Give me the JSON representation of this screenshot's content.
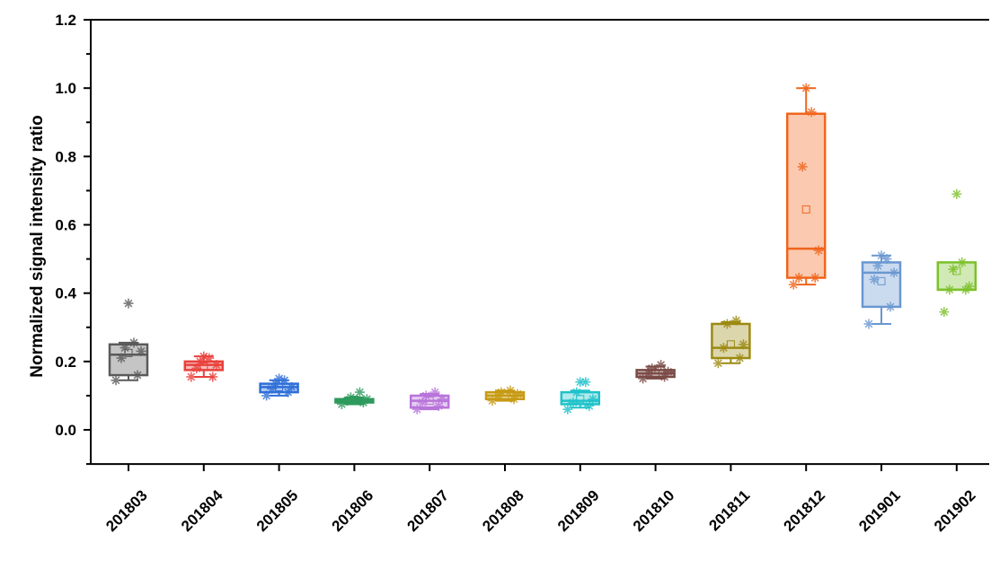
{
  "chart_data": {
    "type": "box",
    "title": "",
    "xlabel": "",
    "ylabel": "Normalized signal intensity ratio",
    "ylim": [
      -0.1,
      1.2
    ],
    "yticks": [
      "0.0",
      "0.2",
      "0.4",
      "0.6",
      "0.8",
      "1.0",
      "1.2"
    ],
    "grid": false,
    "legend": "none",
    "categories": [
      "201803",
      "201804",
      "201805",
      "201806",
      "201807",
      "201808",
      "201809",
      "201810",
      "201811",
      "201812",
      "201901",
      "201902"
    ],
    "series": [
      {
        "category": "201803",
        "color": "#5a5a5a",
        "whisker_low": 0.145,
        "q1": 0.16,
        "median": 0.22,
        "q3": 0.25,
        "whisker_high": 0.255,
        "mean": 0.225,
        "points": [
          0.145,
          0.16,
          0.21,
          0.23,
          0.24,
          0.255,
          0.37
        ]
      },
      {
        "category": "201804",
        "color": "#e8413c",
        "whisker_low": 0.155,
        "q1": 0.175,
        "median": 0.19,
        "q3": 0.2,
        "whisker_high": 0.215,
        "mean": 0.185,
        "points": [
          0.155,
          0.155,
          0.18,
          0.19,
          0.2,
          0.21,
          0.215
        ]
      },
      {
        "category": "201805",
        "color": "#2f6fd8",
        "whisker_low": 0.1,
        "q1": 0.11,
        "median": 0.125,
        "q3": 0.135,
        "whisker_high": 0.145,
        "mean": 0.125,
        "points": [
          0.1,
          0.11,
          0.12,
          0.125,
          0.135,
          0.145,
          0.15
        ]
      },
      {
        "category": "201806",
        "color": "#2e9a5c",
        "whisker_low": 0.075,
        "q1": 0.08,
        "median": 0.085,
        "q3": 0.09,
        "whisker_high": 0.095,
        "mean": 0.088,
        "points": [
          0.075,
          0.08,
          0.085,
          0.09,
          0.095,
          0.11
        ]
      },
      {
        "category": "201807",
        "color": "#b874d9",
        "whisker_low": 0.06,
        "q1": 0.065,
        "median": 0.085,
        "q3": 0.1,
        "whisker_high": 0.105,
        "mean": 0.085,
        "points": [
          0.06,
          0.07,
          0.08,
          0.09,
          0.1,
          0.11
        ]
      },
      {
        "category": "201808",
        "color": "#c79a14",
        "whisker_low": 0.085,
        "q1": 0.09,
        "median": 0.1,
        "q3": 0.11,
        "whisker_high": 0.115,
        "mean": 0.1,
        "points": [
          0.085,
          0.09,
          0.1,
          0.105,
          0.11,
          0.115
        ]
      },
      {
        "category": "201809",
        "color": "#1fc2c9",
        "whisker_low": 0.065,
        "q1": 0.075,
        "median": 0.085,
        "q3": 0.11,
        "whisker_high": 0.115,
        "mean": 0.09,
        "points": [
          0.06,
          0.07,
          0.08,
          0.09,
          0.11,
          0.14,
          0.14
        ]
      },
      {
        "category": "201810",
        "color": "#7a4a46",
        "whisker_low": 0.15,
        "q1": 0.155,
        "median": 0.165,
        "q3": 0.175,
        "whisker_high": 0.185,
        "mean": 0.165,
        "points": [
          0.15,
          0.155,
          0.165,
          0.17,
          0.18,
          0.19
        ]
      },
      {
        "category": "201811",
        "color": "#9c8a12",
        "whisker_low": 0.195,
        "q1": 0.21,
        "median": 0.24,
        "q3": 0.31,
        "whisker_high": 0.315,
        "mean": 0.25,
        "points": [
          0.195,
          0.21,
          0.24,
          0.25,
          0.31,
          0.32
        ]
      },
      {
        "category": "201812",
        "color": "#f0651c",
        "whisker_low": 0.425,
        "q1": 0.445,
        "median": 0.53,
        "q3": 0.925,
        "whisker_high": 1.0,
        "mean": 0.645,
        "points": [
          0.425,
          0.445,
          0.445,
          0.525,
          0.77,
          0.93,
          1.0
        ]
      },
      {
        "category": "201901",
        "color": "#6a97d1",
        "whisker_low": 0.31,
        "q1": 0.36,
        "median": 0.46,
        "q3": 0.49,
        "whisker_high": 0.51,
        "mean": 0.435,
        "points": [
          0.31,
          0.36,
          0.44,
          0.46,
          0.48,
          0.5,
          0.51
        ]
      },
      {
        "category": "201902",
        "color": "#7cc12a",
        "whisker_low": 0.41,
        "q1": 0.41,
        "median": 0.41,
        "q3": 0.49,
        "whisker_high": 0.49,
        "mean": 0.465,
        "points": [
          0.345,
          0.41,
          0.41,
          0.42,
          0.47,
          0.49,
          0.69
        ]
      }
    ]
  }
}
